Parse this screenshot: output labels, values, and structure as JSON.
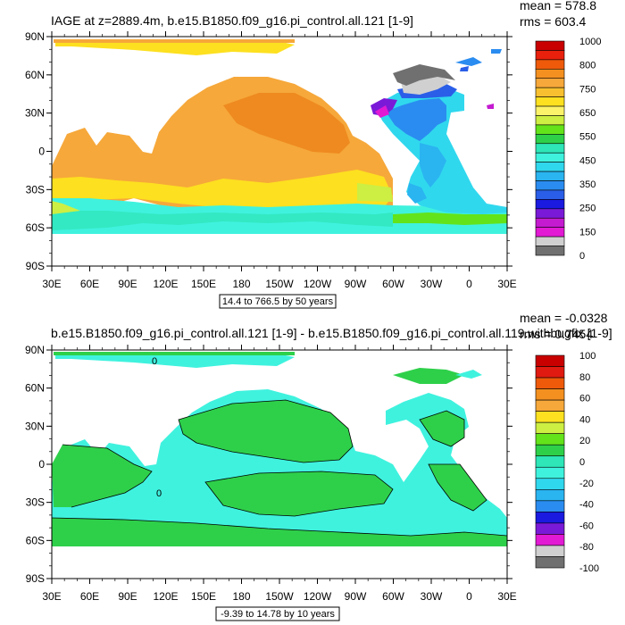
{
  "panels": [
    {
      "title": "IAGE at z=2889.4m, b.e15.B1850.f09_g16.pi_control.all.121 [1-9]",
      "stats": [
        "mean = 578.8",
        "rms = 603.4"
      ],
      "caption": "14.4 to 766.5 by 50 years",
      "colorbar_labels": [
        "1000",
        "800",
        "750",
        "650",
        "550",
        "450",
        "350",
        "250",
        "150",
        "0"
      ],
      "colorbar_colors": [
        "#c80000",
        "#e8200c",
        "#ee5a0a",
        "#f39020",
        "#f6a83a",
        "#f8c030",
        "#fde020",
        "#fcf36a",
        "#cdee42",
        "#63e31a",
        "#2ed04a",
        "#2ee6b8",
        "#3ff2de",
        "#30d8ee",
        "#2ab4f0",
        "#2a8cf0",
        "#2a5ee8",
        "#1a1ae0",
        "#7a1ad8",
        "#c41ad0",
        "#e21ad4",
        "#d0d0d0",
        "#707070"
      ]
    },
    {
      "title": "b.e15.B1850.f09_g16.pi_control.all.121 [1-9] - b.e15.B1850.f09_g16.pi_control.all.119.withbugfix [1-9]",
      "stats": [
        "mean = -0.0328",
        "rms = 0.7454"
      ],
      "caption": "-9.39 to 14.78 by 10 years",
      "colorbar_labels": [
        "100",
        "80",
        "60",
        "40",
        "20",
        "0",
        "-20",
        "-40",
        "-60",
        "-80",
        "-100"
      ],
      "colorbar_colors": [
        "#c80000",
        "#e01a10",
        "#ee5a0a",
        "#f39020",
        "#f6a83a",
        "#fde020",
        "#cdee42",
        "#63e31a",
        "#2ed04a",
        "#2ee6b8",
        "#3ff2de",
        "#30d8ee",
        "#2ab4f0",
        "#2a8cf0",
        "#1a1ae0",
        "#7a1ad8",
        "#e21ad4",
        "#d0d0d0",
        "#707070"
      ]
    }
  ],
  "map": {
    "lat_labels": [
      "90N",
      "60N",
      "30N",
      "0",
      "30S",
      "60S",
      "90S"
    ],
    "lon_labels": [
      "30E",
      "60E",
      "90E",
      "120E",
      "150E",
      "180",
      "150W",
      "120W",
      "90W",
      "60W",
      "30W",
      "0",
      "30E"
    ]
  }
}
